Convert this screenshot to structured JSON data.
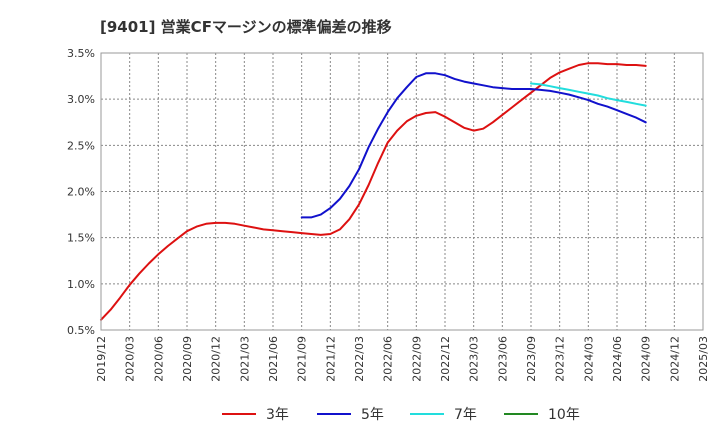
{
  "chart_data": {
    "type": "line",
    "title": "[9401]  営業CFマージンの標準偏差の推移",
    "xlabel": "",
    "ylabel": "",
    "ylim": [
      0.5,
      3.5
    ],
    "yticks": [
      "3.5%",
      "3.0%",
      "2.5%",
      "2.0%",
      "1.5%",
      "1.0%",
      "0.5%"
    ],
    "ytick_values": [
      3.5,
      3.0,
      2.5,
      2.0,
      1.5,
      1.0,
      0.5
    ],
    "xticks": [
      "2019/12",
      "2020/03",
      "2020/06",
      "2020/09",
      "2020/12",
      "2021/03",
      "2021/06",
      "2021/09",
      "2021/12",
      "2022/03",
      "2022/06",
      "2022/09",
      "2022/12",
      "2023/03",
      "2023/06",
      "2023/09",
      "2023/12",
      "2024/03",
      "2024/06",
      "2024/09",
      "2024/12",
      "2025/03"
    ],
    "grid": true,
    "legend_position": "bottom",
    "series": [
      {
        "name": "3年",
        "color": "#dd1111",
        "x": [
          "2019/12",
          "2020/01",
          "2020/02",
          "2020/03",
          "2020/04",
          "2020/05",
          "2020/06",
          "2020/07",
          "2020/08",
          "2020/09",
          "2020/10",
          "2020/11",
          "2020/12",
          "2021/01",
          "2021/02",
          "2021/03",
          "2021/04",
          "2021/05",
          "2021/06",
          "2021/07",
          "2021/08",
          "2021/09",
          "2021/10",
          "2021/11",
          "2021/12",
          "2022/01",
          "2022/02",
          "2022/03",
          "2022/04",
          "2022/05",
          "2022/06",
          "2022/07",
          "2022/08",
          "2022/09",
          "2022/10",
          "2022/11",
          "2022/12",
          "2023/01",
          "2023/02",
          "2023/03",
          "2023/04",
          "2023/05",
          "2023/06",
          "2023/07",
          "2023/08",
          "2023/09",
          "2023/10",
          "2023/11",
          "2023/12",
          "2024/01",
          "2024/02",
          "2024/03",
          "2024/04",
          "2024/05",
          "2024/06",
          "2024/07",
          "2024/08",
          "2024/09"
        ],
        "values": [
          0.61,
          0.72,
          0.85,
          0.99,
          1.11,
          1.22,
          1.32,
          1.41,
          1.49,
          1.57,
          1.62,
          1.65,
          1.66,
          1.66,
          1.65,
          1.63,
          1.61,
          1.59,
          1.58,
          1.57,
          1.56,
          1.55,
          1.54,
          1.53,
          1.54,
          1.59,
          1.7,
          1.86,
          2.07,
          2.31,
          2.53,
          2.66,
          2.76,
          2.82,
          2.85,
          2.86,
          2.81,
          2.75,
          2.69,
          2.66,
          2.68,
          2.75,
          2.83,
          2.91,
          2.99,
          3.07,
          3.15,
          3.23,
          3.29,
          3.33,
          3.37,
          3.39,
          3.39,
          3.38,
          3.38,
          3.37,
          3.37,
          3.36
        ]
      },
      {
        "name": "5年",
        "color": "#1111cc",
        "x": [
          "2021/09",
          "2021/10",
          "2021/11",
          "2021/12",
          "2022/01",
          "2022/02",
          "2022/03",
          "2022/04",
          "2022/05",
          "2022/06",
          "2022/07",
          "2022/08",
          "2022/09",
          "2022/10",
          "2022/11",
          "2022/12",
          "2023/01",
          "2023/02",
          "2023/03",
          "2023/04",
          "2023/05",
          "2023/06",
          "2023/07",
          "2023/08",
          "2023/09",
          "2023/10",
          "2023/11",
          "2023/12",
          "2024/01",
          "2024/02",
          "2024/03",
          "2024/04",
          "2024/05",
          "2024/06",
          "2024/07",
          "2024/08",
          "2024/09"
        ],
        "values": [
          1.72,
          1.72,
          1.75,
          1.82,
          1.92,
          2.06,
          2.24,
          2.48,
          2.68,
          2.86,
          3.01,
          3.13,
          3.24,
          3.28,
          3.28,
          3.26,
          3.22,
          3.19,
          3.17,
          3.15,
          3.13,
          3.12,
          3.11,
          3.11,
          3.11,
          3.1,
          3.09,
          3.07,
          3.05,
          3.02,
          2.99,
          2.95,
          2.92,
          2.88,
          2.84,
          2.8,
          2.75
        ]
      },
      {
        "name": "7年",
        "color": "#22dddd",
        "x": [
          "2023/09",
          "2023/10",
          "2023/11",
          "2023/12",
          "2024/01",
          "2024/02",
          "2024/03",
          "2024/04",
          "2024/05",
          "2024/06",
          "2024/07",
          "2024/08",
          "2024/09"
        ],
        "values": [
          3.17,
          3.16,
          3.14,
          3.12,
          3.1,
          3.08,
          3.06,
          3.04,
          3.01,
          2.99,
          2.97,
          2.95,
          2.93
        ]
      },
      {
        "name": "10年",
        "color": "#228822",
        "x": [],
        "values": []
      }
    ]
  }
}
